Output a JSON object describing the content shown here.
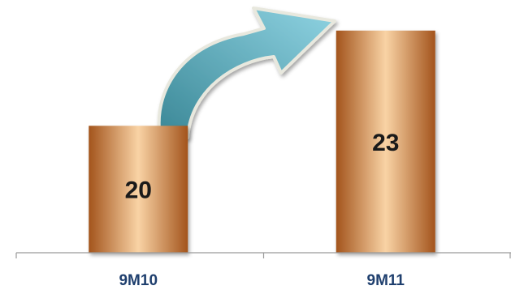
{
  "chart_data": {
    "type": "bar",
    "categories": [
      "9M10",
      "9M11"
    ],
    "values": [
      20,
      23
    ],
    "title": "",
    "xlabel": "",
    "ylabel": "",
    "ylim": [
      16,
      23.3
    ],
    "grid": false,
    "legend": "none",
    "data_labels": true,
    "annotation": "curved-arrow-increase"
  },
  "colors": {
    "bar_light": "#f9d3a5",
    "bar_mid": "#f0a35b",
    "bar_dark": "#a3541c",
    "arrow_light": "#8fd3e2",
    "arrow_dark": "#3a8796",
    "arrow_border": "#e8e8de",
    "axis": "#9a9a9a",
    "tick_label": "#1f3f6e"
  }
}
